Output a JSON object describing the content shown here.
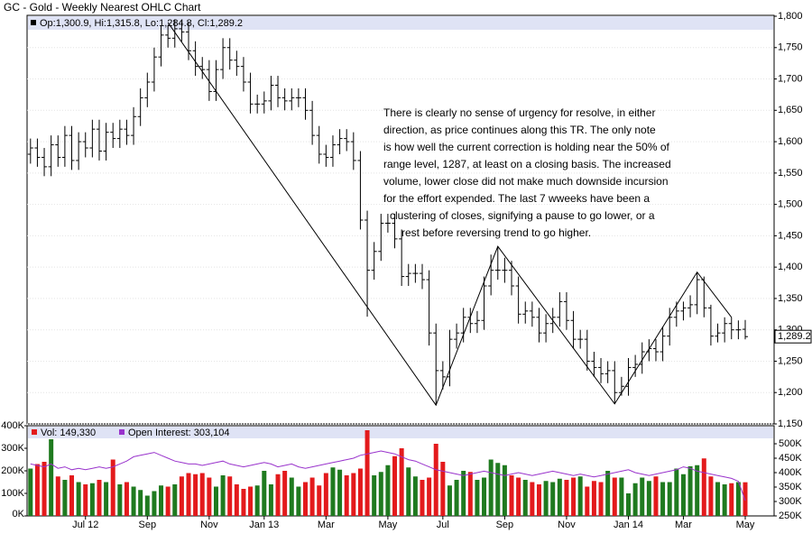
{
  "chart_data": {
    "type": "ohlc",
    "title": "GC - Gold - Weekly Nearest OHLC Chart",
    "legend_text": "Op:1,300.9, Hi:1,315.8, Lo:1,284.8, Cl:1,289.2",
    "categories": [
      null,
      null,
      null,
      null,
      null,
      null,
      null,
      null,
      "Jul 12",
      null,
      null,
      null,
      null,
      null,
      null,
      null,
      null,
      "Sep",
      null,
      null,
      null,
      null,
      null,
      null,
      null,
      null,
      "Nov",
      null,
      null,
      null,
      null,
      null,
      null,
      null,
      "Jan 13",
      null,
      null,
      null,
      null,
      null,
      null,
      null,
      null,
      "Mar",
      null,
      null,
      null,
      null,
      null,
      null,
      null,
      null,
      "May",
      null,
      null,
      null,
      null,
      null,
      null,
      null,
      "Jul",
      null,
      null,
      null,
      null,
      null,
      null,
      null,
      null,
      "Sep",
      null,
      null,
      null,
      null,
      null,
      null,
      null,
      null,
      "Nov",
      null,
      null,
      null,
      null,
      null,
      null,
      null,
      null,
      "Jan 14",
      null,
      null,
      null,
      null,
      null,
      null,
      null,
      "Mar",
      null,
      null,
      null,
      null,
      null,
      null,
      null,
      null,
      "May"
    ],
    "open": [
      1580,
      1590,
      1575,
      1560,
      1595,
      1575,
      1610,
      1570,
      1600,
      1590,
      1620,
      1585,
      1615,
      1605,
      1620,
      1610,
      1640,
      1670,
      1695,
      1735,
      1770,
      1765,
      1780,
      1775,
      1745,
      1720,
      1715,
      1680,
      1715,
      1750,
      1730,
      1720,
      1695,
      1660,
      1660,
      1665,
      1690,
      1670,
      1665,
      1670,
      1670,
      1650,
      1610,
      1580,
      1575,
      1595,
      1605,
      1600,
      1570,
      1475,
      1395,
      1425,
      1470,
      1470,
      1445,
      1385,
      1390,
      1390,
      1380,
      1295,
      1235,
      1225,
      1285,
      1295,
      1320,
      1310,
      1315,
      1370,
      1395,
      1395,
      1395,
      1370,
      1325,
      1330,
      1320,
      1295,
      1310,
      1320,
      1345,
      1315,
      1285,
      1285,
      1250,
      1240,
      1230,
      1235,
      1200,
      1210,
      1240,
      1245,
      1265,
      1270,
      1265,
      1290,
      1320,
      1330,
      1335,
      1340,
      1380,
      1335,
      1290,
      1295,
      1310,
      1300,
      1300.9
    ],
    "high": [
      1605,
      1605,
      1590,
      1610,
      1610,
      1625,
      1625,
      1615,
      1615,
      1635,
      1635,
      1630,
      1630,
      1635,
      1635,
      1655,
      1685,
      1710,
      1750,
      1785,
      1785,
      1795,
      1792,
      1790,
      1760,
      1735,
      1730,
      1730,
      1765,
      1765,
      1745,
      1735,
      1710,
      1675,
      1680,
      1705,
      1705,
      1685,
      1685,
      1685,
      1685,
      1665,
      1625,
      1595,
      1610,
      1620,
      1620,
      1615,
      1585,
      1490,
      1440,
      1485,
      1485,
      1485,
      1460,
      1405,
      1405,
      1405,
      1395,
      1310,
      1250,
      1300,
      1310,
      1335,
      1335,
      1330,
      1385,
      1420,
      1433,
      1415,
      1410,
      1385,
      1345,
      1345,
      1335,
      1325,
      1335,
      1360,
      1360,
      1330,
      1300,
      1300,
      1265,
      1255,
      1250,
      1250,
      1225,
      1255,
      1260,
      1280,
      1285,
      1285,
      1305,
      1335,
      1345,
      1345,
      1355,
      1392,
      1385,
      1340,
      1310,
      1320,
      1320,
      1315,
      1315.8
    ],
    "low": [
      1565,
      1560,
      1545,
      1545,
      1560,
      1560,
      1555,
      1555,
      1575,
      1575,
      1570,
      1570,
      1590,
      1590,
      1595,
      1595,
      1625,
      1655,
      1680,
      1720,
      1750,
      1750,
      1760,
      1730,
      1705,
      1700,
      1665,
      1665,
      1700,
      1715,
      1705,
      1680,
      1645,
      1645,
      1645,
      1650,
      1655,
      1650,
      1650,
      1655,
      1635,
      1595,
      1565,
      1560,
      1560,
      1580,
      1585,
      1555,
      1460,
      1321,
      1380,
      1410,
      1455,
      1430,
      1370,
      1370,
      1375,
      1365,
      1275,
      1180,
      1205,
      1210,
      1270,
      1280,
      1295,
      1295,
      1300,
      1355,
      1380,
      1375,
      1355,
      1310,
      1310,
      1305,
      1280,
      1280,
      1295,
      1305,
      1300,
      1270,
      1270,
      1235,
      1225,
      1215,
      1215,
      1182,
      1195,
      1195,
      1225,
      1230,
      1250,
      1250,
      1250,
      1275,
      1305,
      1315,
      1320,
      1325,
      1320,
      1275,
      1280,
      1280,
      1285,
      1285,
      1284.8
    ],
    "close": [
      1590,
      1575,
      1560,
      1595,
      1575,
      1610,
      1570,
      1600,
      1590,
      1620,
      1585,
      1615,
      1605,
      1620,
      1610,
      1640,
      1670,
      1695,
      1735,
      1770,
      1765,
      1780,
      1775,
      1745,
      1720,
      1715,
      1680,
      1715,
      1750,
      1730,
      1720,
      1695,
      1660,
      1660,
      1665,
      1690,
      1670,
      1665,
      1670,
      1670,
      1650,
      1610,
      1580,
      1575,
      1595,
      1605,
      1600,
      1570,
      1475,
      1395,
      1425,
      1470,
      1470,
      1445,
      1385,
      1390,
      1390,
      1380,
      1295,
      1235,
      1225,
      1285,
      1295,
      1320,
      1310,
      1315,
      1370,
      1395,
      1395,
      1395,
      1370,
      1325,
      1330,
      1320,
      1295,
      1310,
      1320,
      1345,
      1315,
      1285,
      1285,
      1250,
      1240,
      1230,
      1235,
      1200,
      1210,
      1240,
      1245,
      1265,
      1270,
      1265,
      1290,
      1320,
      1330,
      1335,
      1340,
      1380,
      1335,
      1290,
      1295,
      1310,
      1300,
      1300,
      1289.2
    ],
    "last_label": "1,289.2",
    "color": "#000000",
    "ylim": [
      1150,
      1800
    ],
    "yticks": [
      {
        "value": 1150,
        "label": "1,150"
      },
      {
        "value": 1200,
        "label": "1,200"
      },
      {
        "value": 1250,
        "label": "1,250"
      },
      {
        "value": 1300,
        "label": "1,300"
      },
      {
        "value": 1350,
        "label": "1,350"
      },
      {
        "value": 1400,
        "label": "1,400"
      },
      {
        "value": 1450,
        "label": "1,450"
      },
      {
        "value": 1500,
        "label": "1,500"
      },
      {
        "value": 1550,
        "label": "1,550"
      },
      {
        "value": 1600,
        "label": "1,600"
      },
      {
        "value": 1650,
        "label": "1,650"
      },
      {
        "value": 1700,
        "label": "1,700"
      },
      {
        "value": 1750,
        "label": "1,750"
      },
      {
        "value": 1800,
        "label": "1,800"
      }
    ],
    "grid": true,
    "annotation": [
      "There is clearly no sense of urgency for resolve, in either",
      "direction, as price continues along this TR.  The only note",
      "is how well the current correction is holding near the 50% of",
      "range level, 1287, at least on a closing basis.  The increased",
      "volume, lower close did not make much downside incursion",
      "for the effort expended.  The last 7 wweeks have been a",
      "clustering of closes, signifying a pause to go lower, or a",
      "rest before reversing trend to go higher."
    ],
    "trendline": {
      "x": [
        20,
        59,
        68,
        85,
        97,
        102
      ],
      "y": [
        1790,
        1180,
        1433,
        1182,
        1392,
        1320
      ],
      "color": "#000000"
    },
    "volume": {
      "legend_text": "Vol: 149,330",
      "up_color": "#1f7a1f",
      "down_color": "#e31a1c",
      "values": [
        210000,
        230000,
        240000,
        340000,
        175000,
        160000,
        180000,
        150000,
        140000,
        145000,
        160000,
        150000,
        250000,
        140000,
        150000,
        130000,
        115000,
        90000,
        110000,
        135000,
        130000,
        140000,
        175000,
        190000,
        185000,
        190000,
        170000,
        130000,
        180000,
        175000,
        140000,
        120000,
        130000,
        135000,
        200000,
        140000,
        185000,
        200000,
        170000,
        130000,
        150000,
        170000,
        135000,
        190000,
        215000,
        205000,
        180000,
        190000,
        210000,
        380000,
        180000,
        195000,
        225000,
        265000,
        300000,
        215000,
        175000,
        160000,
        170000,
        320000,
        240000,
        135000,
        160000,
        200000,
        195000,
        160000,
        170000,
        250000,
        235000,
        225000,
        180000,
        170000,
        160000,
        150000,
        140000,
        155000,
        150000,
        165000,
        160000,
        170000,
        175000,
        130000,
        155000,
        150000,
        200000,
        170000,
        170000,
        100000,
        145000,
        170000,
        155000,
        175000,
        150000,
        150000,
        210000,
        185000,
        220000,
        225000,
        255000,
        175000,
        150000,
        140000,
        145000,
        150000,
        149330
      ],
      "ylim": [
        0,
        400000
      ],
      "yticks": [
        {
          "value": 0,
          "label": "0K"
        },
        {
          "value": 100000,
          "label": "100K"
        },
        {
          "value": 200000,
          "label": "200K"
        },
        {
          "value": 300000,
          "label": "300K"
        },
        {
          "value": 400000,
          "label": "400K"
        }
      ]
    },
    "open_interest": {
      "legend_text": "Open Interest: 303,104",
      "color": "#9933cc",
      "axis": "y2",
      "values": [
        430000,
        425000,
        420000,
        430000,
        415000,
        420000,
        410000,
        415000,
        410000,
        415000,
        420000,
        415000,
        420000,
        430000,
        440000,
        455000,
        460000,
        465000,
        470000,
        460000,
        450000,
        440000,
        435000,
        430000,
        430000,
        425000,
        430000,
        435000,
        440000,
        430000,
        425000,
        420000,
        425000,
        430000,
        435000,
        430000,
        420000,
        425000,
        430000,
        420000,
        415000,
        420000,
        425000,
        430000,
        435000,
        440000,
        445000,
        450000,
        460000,
        465000,
        470000,
        475000,
        470000,
        465000,
        455000,
        445000,
        440000,
        430000,
        420000,
        410000,
        405000,
        400000,
        395000,
        390000,
        395000,
        400000,
        405000,
        400000,
        395000,
        390000,
        395000,
        400000,
        395000,
        390000,
        395000,
        400000,
        405000,
        400000,
        395000,
        390000,
        395000,
        390000,
        385000,
        390000,
        395000,
        400000,
        405000,
        410000,
        400000,
        395000,
        390000,
        395000,
        400000,
        405000,
        410000,
        420000,
        415000,
        405000,
        400000,
        395000,
        390000,
        385000,
        380000,
        370000,
        303104
      ]
    },
    "y2lim": [
      250000,
      562500
    ],
    "y2ticks": [
      {
        "value": 250000,
        "label": "250K"
      },
      {
        "value": 300000,
        "label": "300K"
      },
      {
        "value": 350000,
        "label": "350K"
      },
      {
        "value": 400000,
        "label": "400K"
      },
      {
        "value": 450000,
        "label": "450K"
      },
      {
        "value": 500000,
        "label": "500K"
      }
    ]
  }
}
